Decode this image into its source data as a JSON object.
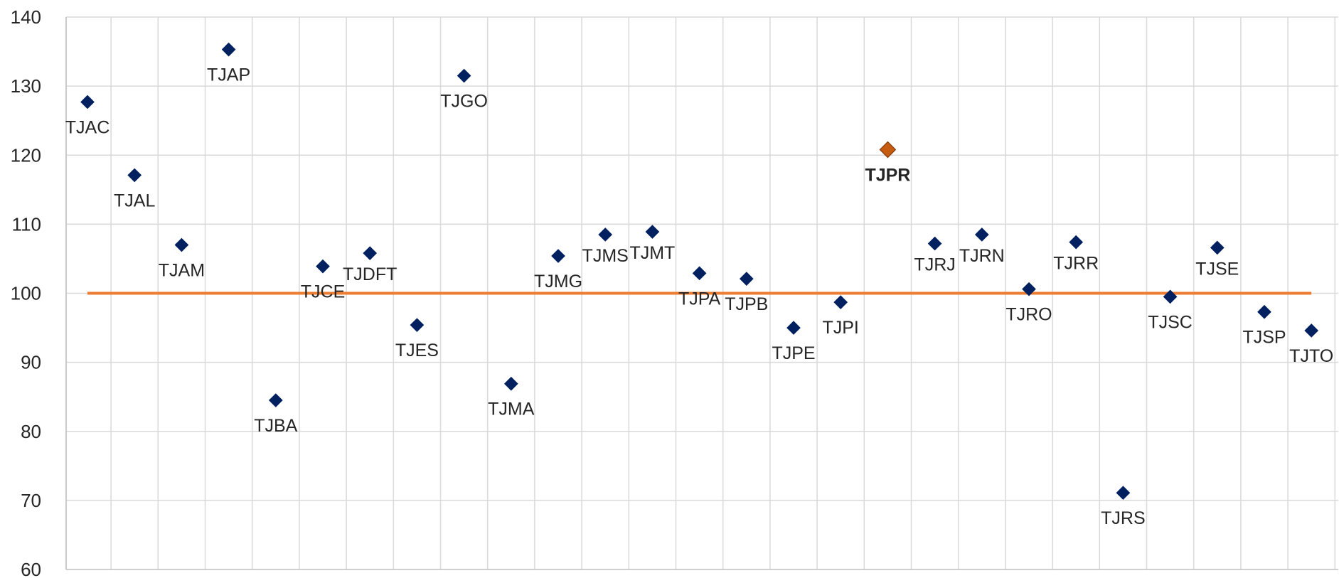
{
  "chart_data": {
    "type": "scatter",
    "title": "",
    "xlabel": "",
    "ylabel": "",
    "ylim": [
      60,
      140
    ],
    "yticks": [
      60,
      70,
      80,
      90,
      100,
      110,
      120,
      130,
      140
    ],
    "grid": true,
    "reference_line": {
      "y": 100,
      "color": "#ED7D31"
    },
    "colors": {
      "point": "#002060",
      "highlight": "#C55A11",
      "highlight_border": "#843C0C",
      "grid": "#D9D9D9",
      "axis": "#BFBFBF"
    },
    "highlight": "TJPR",
    "points": [
      {
        "label": "TJAC",
        "y": 127.7
      },
      {
        "label": "TJAL",
        "y": 117.1
      },
      {
        "label": "TJAM",
        "y": 107.0
      },
      {
        "label": "TJAP",
        "y": 135.3
      },
      {
        "label": "TJBA",
        "y": 84.5
      },
      {
        "label": "TJCE",
        "y": 103.9
      },
      {
        "label": "TJDFT",
        "y": 105.8
      },
      {
        "label": "TJES",
        "y": 95.4
      },
      {
        "label": "TJGO",
        "y": 131.5
      },
      {
        "label": "TJMA",
        "y": 86.9
      },
      {
        "label": "TJMG",
        "y": 105.4
      },
      {
        "label": "TJMS",
        "y": 108.5
      },
      {
        "label": "TJMT",
        "y": 108.9
      },
      {
        "label": "TJPA",
        "y": 102.9
      },
      {
        "label": "TJPB",
        "y": 102.1
      },
      {
        "label": "TJPE",
        "y": 95.0
      },
      {
        "label": "TJPI",
        "y": 98.7
      },
      {
        "label": "TJPR",
        "y": 120.8
      },
      {
        "label": "TJRJ",
        "y": 107.2
      },
      {
        "label": "TJRN",
        "y": 108.5
      },
      {
        "label": "TJRO",
        "y": 100.6
      },
      {
        "label": "TJRR",
        "y": 107.4
      },
      {
        "label": "TJRS",
        "y": 71.1
      },
      {
        "label": "TJSC",
        "y": 99.5
      },
      {
        "label": "TJSE",
        "y": 106.6
      },
      {
        "label": "TJSP",
        "y": 97.3
      },
      {
        "label": "TJTO",
        "y": 94.6
      }
    ]
  }
}
